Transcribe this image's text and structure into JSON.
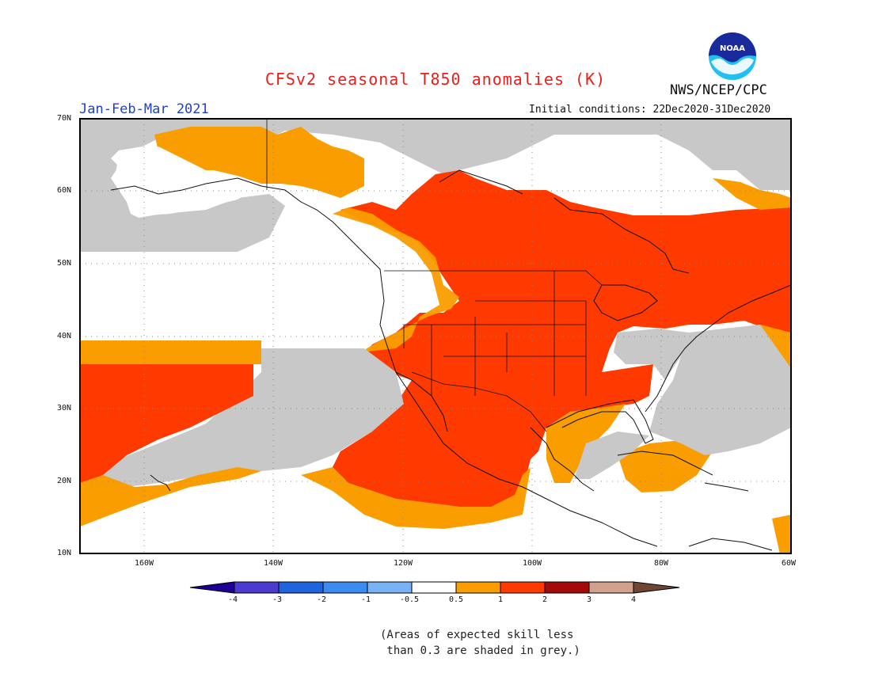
{
  "header": {
    "title": "CFSv2 seasonal T850 anomalies (K)",
    "agency": "NWS/NCEP/CPC",
    "period": "Jan-Feb-Mar 2021",
    "initial_conditions": "Initial conditions: 22Dec2020-31Dec2020",
    "logo_text": "NOAA"
  },
  "map": {
    "lat_labels": [
      "70N",
      "60N",
      "50N",
      "40N",
      "30N",
      "20N",
      "10N"
    ],
    "lon_labels": [
      "160W",
      "140W",
      "120W",
      "100W",
      "80W",
      "60W"
    ],
    "extent": {
      "lon_min": -170,
      "lon_max": -60,
      "lat_min": 10,
      "lat_max": 70
    },
    "colors": {
      "no_skill_grey": "#c8c8c8",
      "anom_0_5_to_1": "#fa9d00",
      "anom_1_to_2": "#ff3a00",
      "ocean_land_neutral": "#ffffff"
    }
  },
  "colorbar": {
    "labels": [
      "-4",
      "-3",
      "-2",
      "-1",
      "-0.5",
      "0.5",
      "1",
      "2",
      "3",
      "4"
    ],
    "colors": [
      "#1e0096",
      "#4b3ccf",
      "#1e64dc",
      "#3c8cf0",
      "#78b4f5",
      "#ffffff",
      "#fa9d00",
      "#ff3a00",
      "#a50a0a",
      "#d2a08c",
      "#6e4632"
    ]
  },
  "note": "(Areas of expected skill less\n than 0.3 are shaded in grey.)"
}
